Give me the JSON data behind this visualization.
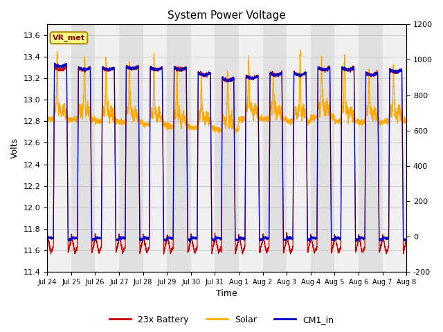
{
  "title": "System Power Voltage",
  "xlabel": "Time",
  "ylabel": "Volts",
  "ylim_left": [
    11.4,
    13.7
  ],
  "ylim_right": [
    -200,
    1200
  ],
  "yticks_left": [
    11.4,
    11.6,
    11.8,
    12.0,
    12.2,
    12.4,
    12.6,
    12.8,
    13.0,
    13.2,
    13.4,
    13.6
  ],
  "yticks_right": [
    -200,
    0,
    200,
    400,
    600,
    800,
    1000,
    1200
  ],
  "annotation_text": "VR_met",
  "colors": {
    "battery": "#cc0000",
    "solar": "#ffaa00",
    "cm1": "#0000cc"
  },
  "legend_labels": [
    "23x Battery",
    "Solar",
    "CM1_in"
  ],
  "num_days": 15,
  "background_color": "#ffffff",
  "band_gray": "#e0e0e0",
  "band_white": "#f0f0f0"
}
